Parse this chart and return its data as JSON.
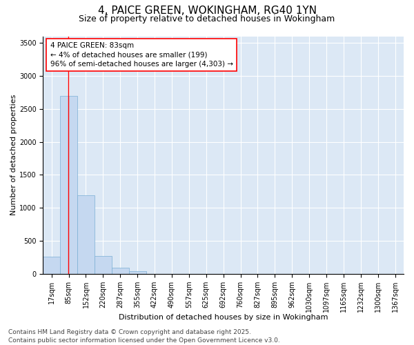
{
  "title": "4, PAICE GREEN, WOKINGHAM, RG40 1YN",
  "subtitle": "Size of property relative to detached houses in Wokingham",
  "xlabel": "Distribution of detached houses by size in Wokingham",
  "ylabel": "Number of detached properties",
  "fig_background_color": "#ffffff",
  "plot_background_color": "#dce8f5",
  "bar_color": "#c5d8f0",
  "bar_edge_color": "#7bafd4",
  "grid_color": "#ffffff",
  "categories": [
    "17sqm",
    "85sqm",
    "152sqm",
    "220sqm",
    "287sqm",
    "355sqm",
    "422sqm",
    "490sqm",
    "557sqm",
    "625sqm",
    "692sqm",
    "760sqm",
    "827sqm",
    "895sqm",
    "962sqm",
    "1030sqm",
    "1097sqm",
    "1165sqm",
    "1232sqm",
    "1300sqm",
    "1367sqm"
  ],
  "values": [
    260,
    2700,
    1190,
    275,
    90,
    40,
    0,
    0,
    0,
    0,
    0,
    0,
    0,
    0,
    0,
    0,
    0,
    0,
    0,
    0,
    0
  ],
  "ylim": [
    0,
    3600
  ],
  "yticks": [
    0,
    500,
    1000,
    1500,
    2000,
    2500,
    3000,
    3500
  ],
  "annotation_line1": "4 PAICE GREEN: 83sqm",
  "annotation_line2": "← 4% of detached houses are smaller (199)",
  "annotation_line3": "96% of semi-detached houses are larger (4,303) →",
  "vline_bar_index": 0.97,
  "footer_text": "Contains HM Land Registry data © Crown copyright and database right 2025.\nContains public sector information licensed under the Open Government Licence v3.0.",
  "title_fontsize": 11,
  "subtitle_fontsize": 9,
  "axis_label_fontsize": 8,
  "tick_fontsize": 7,
  "annotation_fontsize": 7.5,
  "footer_fontsize": 6.5
}
